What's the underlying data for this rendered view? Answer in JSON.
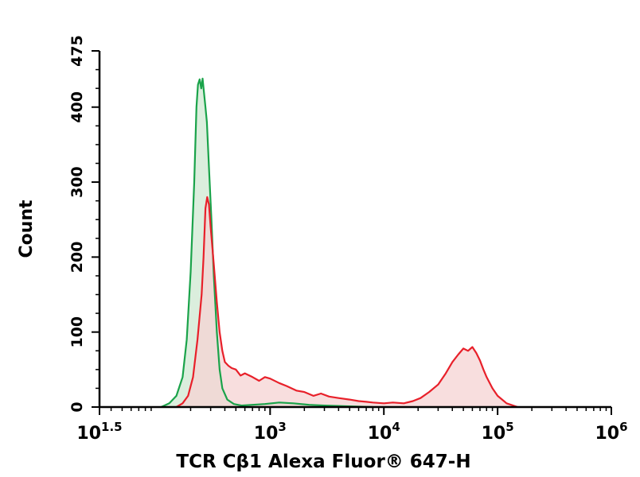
{
  "chart_data": {
    "type": "area",
    "title": "",
    "xlabel": "TCR Cβ1 Alexa Fluor® 647-H",
    "ylabel": "Count",
    "x_scale": "log10",
    "xlim": [
      31.62,
      1000000
    ],
    "ylim": [
      0,
      475
    ],
    "x_ticks": [
      {
        "value": 31.62,
        "base": "10",
        "exp": "1.5"
      },
      {
        "value": 1000,
        "base": "10",
        "exp": "3"
      },
      {
        "value": 10000,
        "base": "10",
        "exp": "4"
      },
      {
        "value": 100000,
        "base": "10",
        "exp": "5"
      },
      {
        "value": 1000000,
        "base": "10",
        "exp": "6"
      }
    ],
    "y_ticks": [
      0,
      100,
      200,
      300,
      400,
      475
    ],
    "grid": false,
    "legend": "none",
    "series": [
      {
        "color": "#1aa34a",
        "fill": "#cfe8d2",
        "x": [
          110,
          130,
          150,
          170,
          185,
          200,
          215,
          225,
          232,
          240,
          248,
          255,
          262,
          270,
          278,
          290,
          305,
          320,
          340,
          360,
          380,
          420,
          480,
          560,
          700,
          900,
          1200,
          1600,
          2200,
          3000,
          5000,
          8000
        ],
        "y": [
          0,
          5,
          15,
          40,
          90,
          180,
          300,
          400,
          430,
          437,
          425,
          438,
          420,
          400,
          380,
          320,
          250,
          175,
          100,
          50,
          25,
          10,
          4,
          2,
          3,
          4,
          6,
          5,
          3,
          2,
          1,
          0
        ]
      },
      {
        "color": "#e8202a",
        "fill": "#f6d3d3",
        "x": [
          150,
          170,
          190,
          210,
          230,
          250,
          260,
          270,
          280,
          290,
          300,
          320,
          340,
          360,
          380,
          400,
          430,
          460,
          500,
          550,
          600,
          700,
          800,
          900,
          1000,
          1200,
          1400,
          1700,
          2000,
          2400,
          2800,
          3300,
          4000,
          5000,
          6000,
          7000,
          8000,
          10000,
          12000,
          15000,
          18000,
          21000,
          25000,
          30000,
          35000,
          40000,
          45000,
          50000,
          55000,
          60000,
          65000,
          70000,
          75000,
          80000,
          90000,
          100000,
          120000,
          150000
        ],
        "y": [
          0,
          5,
          15,
          40,
          90,
          150,
          200,
          265,
          280,
          270,
          240,
          190,
          140,
          100,
          75,
          60,
          55,
          52,
          50,
          42,
          45,
          40,
          35,
          40,
          38,
          32,
          28,
          22,
          20,
          15,
          18,
          14,
          12,
          10,
          8,
          7,
          6,
          5,
          6,
          5,
          8,
          12,
          20,
          30,
          45,
          60,
          70,
          78,
          75,
          80,
          72,
          62,
          50,
          40,
          25,
          15,
          5,
          0
        ]
      }
    ]
  }
}
